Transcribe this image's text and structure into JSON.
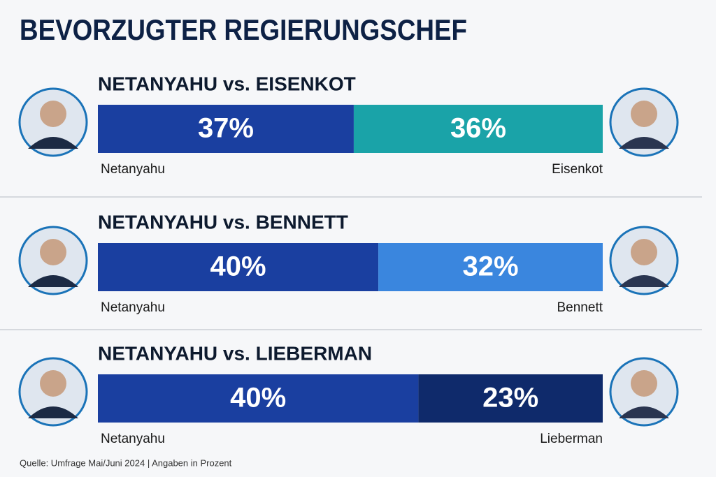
{
  "title": "BEVORZUGTER REGIERUNGSCHEF",
  "source": "Quelle: Umfrage Mai/Juni 2024 | Angaben in Prozent",
  "chart_data": [
    {
      "type": "bar",
      "title": "NETANYAHU vs. EISENKOT",
      "series": [
        {
          "name": "Netanyahu",
          "color": "#1a3fa0",
          "values": [
            37
          ],
          "value_labels": [
            "37%"
          ]
        },
        {
          "name": "Eisenkot",
          "color": "#1aa3a8",
          "values": [
            36
          ],
          "value_labels": [
            "36%"
          ]
        }
      ]
    },
    {
      "type": "bar",
      "title": "NETANYAHU vs. BENNETT",
      "series": [
        {
          "name": "Netanyahu",
          "color": "#1a3fa0",
          "values": [
            40
          ],
          "value_labels": [
            "40%"
          ]
        },
        {
          "name": "Bennett",
          "color": "#3a86de",
          "values": [
            32
          ],
          "value_labels": [
            "32%"
          ]
        }
      ]
    },
    {
      "type": "bar",
      "title": "NETANYAHU vs. LIEBERMAN",
      "series": [
        {
          "name": "Netanyahu",
          "color": "#1a3fa0",
          "values": [
            40
          ],
          "value_labels": [
            "40%"
          ]
        },
        {
          "name": "Lieberman",
          "color": "#0f2a6b",
          "values": [
            23
          ],
          "value_labels": [
            "23%"
          ]
        }
      ]
    }
  ]
}
